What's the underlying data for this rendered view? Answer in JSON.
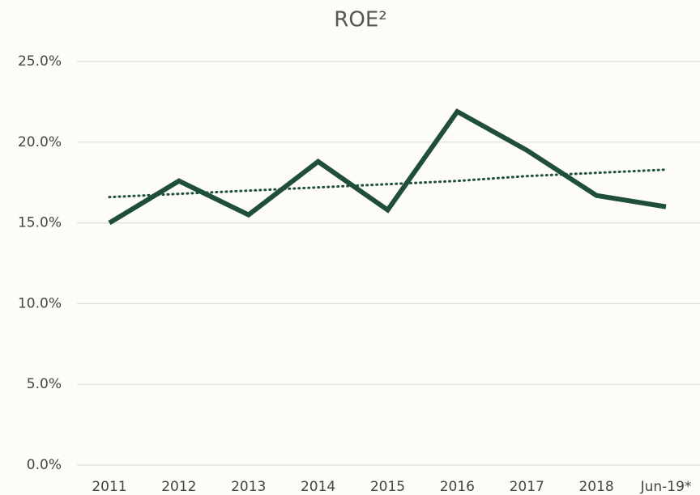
{
  "chart_data": {
    "type": "line",
    "title": "ROE²",
    "categories": [
      "2011",
      "2012",
      "2013",
      "2014",
      "2015",
      "2016",
      "2017",
      "2018",
      "Jun-19*"
    ],
    "series": [
      {
        "color": "#1f4e3d",
        "values": [
          15.0,
          17.6,
          15.5,
          18.8,
          15.8,
          21.9,
          19.5,
          16.7,
          16.0
        ]
      }
    ],
    "trendline": {
      "color": "#1f4e3d",
      "style": "dotted",
      "values": [
        16.6,
        16.8,
        17.0,
        17.2,
        17.4,
        17.6,
        17.9,
        18.1,
        18.3
      ]
    },
    "ylim": [
      0,
      25
    ],
    "yticks": [
      {
        "value": 0,
        "label": "0.0%"
      },
      {
        "value": 5,
        "label": "5.0%"
      },
      {
        "value": 10,
        "label": "10.0%"
      },
      {
        "value": 15,
        "label": "15.0%"
      },
      {
        "value": 20,
        "label": "20.0%"
      },
      {
        "value": 25,
        "label": "25.0%"
      }
    ],
    "grid": true
  }
}
